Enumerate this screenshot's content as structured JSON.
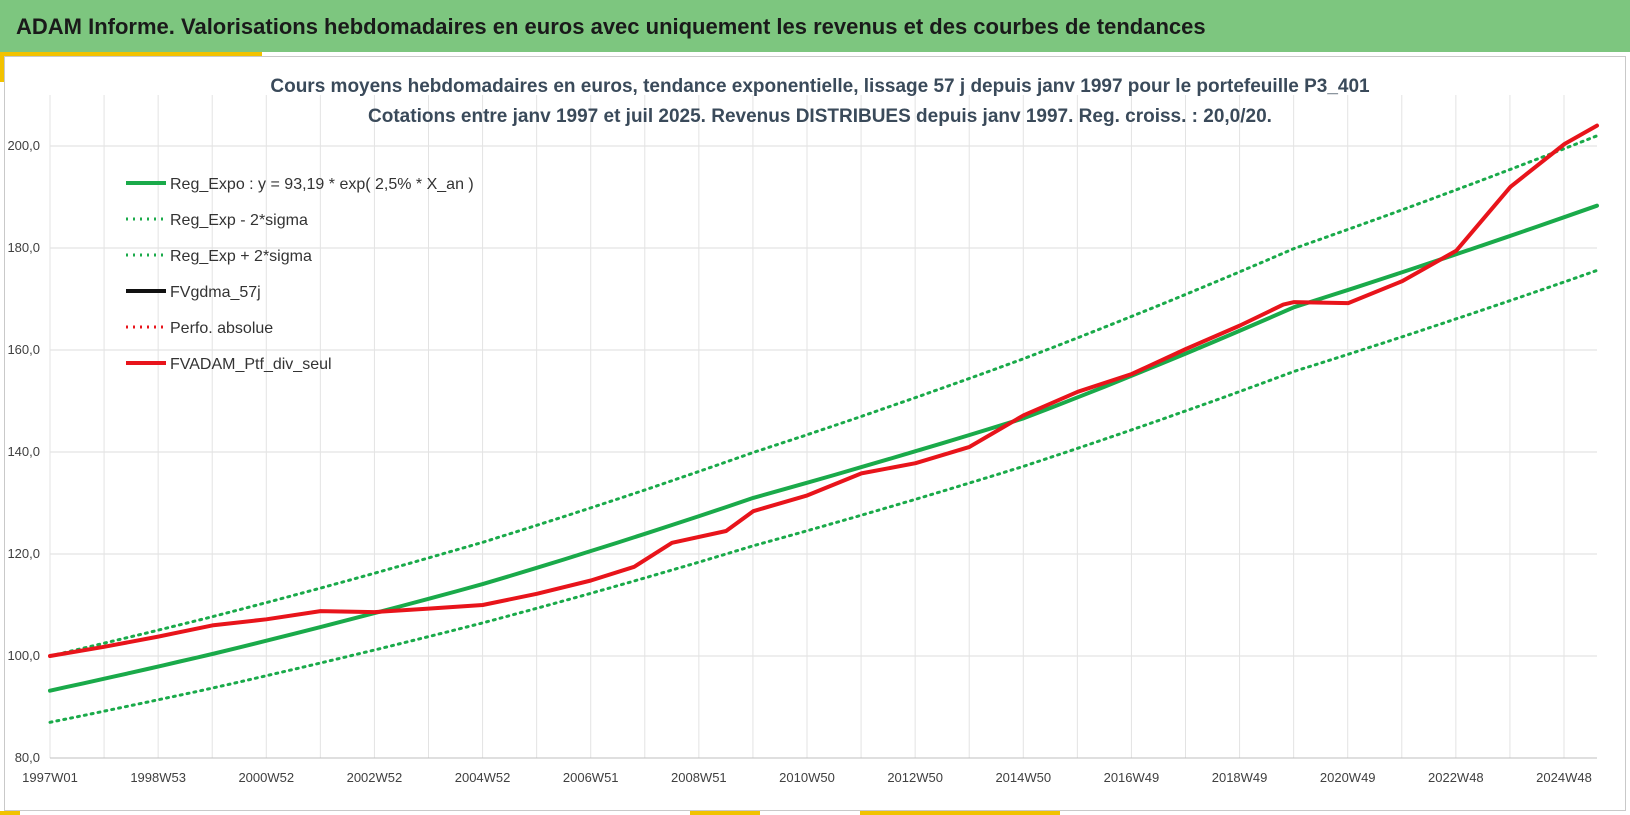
{
  "header": {
    "title": "ADAM Informe. Valorisations hebdomadaires en euros avec uniquement les revenus et des courbes de tendances"
  },
  "colors": {
    "banner": "#7dc67f",
    "accent": "#f2c200",
    "green": "#1aaa4a",
    "red": "#e8141b",
    "black": "#111111"
  },
  "chart_data": {
    "type": "line",
    "title_lines": [
      "Cours moyens hebdomadaires  en euros, tendance exponentielle, lissage 57 j depuis janv 1997 pour le portefeuille P3_401",
      "Cotations entre janv 1997 et juil 2025. Revenus DISTRIBUES depuis janv 1997. Reg. croiss. : 20,0/20."
    ],
    "ylim": [
      80,
      210
    ],
    "yticks": [
      "80,0",
      "100,0",
      "120,0",
      "140,0",
      "160,0",
      "180,0",
      "200,0"
    ],
    "xlim": [
      1997.0,
      2025.6
    ],
    "xticks": [
      "1997W01",
      "1998W53",
      "2000W52",
      "2002W52",
      "2004W52",
      "2006W51",
      "2008W51",
      "2010W50",
      "2012W50",
      "2014W50",
      "2016W49",
      "2018W49",
      "2020W49",
      "2022W48",
      "2024W48"
    ],
    "grid": true,
    "legend_position": "top-left",
    "series": [
      {
        "name": "Reg_Expo : y = 93,19 * exp( 2,5% *  X_an )",
        "color": "#1aaa4a",
        "style": "solid",
        "x": [
          1997.0,
          2000.0,
          2005.0,
          2010.0,
          2015.0,
          2020.0,
          2025.6
        ],
        "y": [
          93.2,
          100.4,
          114.1,
          131.0,
          146.6,
          168.4,
          188.3
        ]
      },
      {
        "name": "Reg_Exp - 2*sigma",
        "color": "#1aaa4a",
        "style": "dotted",
        "x": [
          1997.0,
          2000.0,
          2005.0,
          2010.0,
          2015.0,
          2020.0,
          2025.6
        ],
        "y": [
          87.0,
          93.7,
          106.5,
          121.6,
          137.2,
          155.8,
          175.6
        ]
      },
      {
        "name": "Reg_Exp + 2*sigma",
        "color": "#1aaa4a",
        "style": "dotted",
        "x": [
          1997.0,
          2000.0,
          2005.0,
          2010.0,
          2015.0,
          2020.0,
          2025.6
        ],
        "y": [
          100.0,
          107.7,
          122.3,
          139.9,
          158.3,
          179.9,
          202.0
        ]
      },
      {
        "name": "FVgdma_57j",
        "color": "#111111",
        "style": "solid",
        "x": [
          1997.0,
          1998.0,
          1999.0,
          2000.0,
          2001.0,
          2002.0,
          2003.0,
          2004.0,
          2005.0,
          2006.0,
          2007.0,
          2007.8,
          2008.5,
          2009.5,
          2010.0,
          2011.0,
          2012.0,
          2013.0,
          2014.0,
          2015.0,
          2016.0,
          2017.0,
          2018.0,
          2019.0,
          2019.8,
          2020.0,
          2021.0,
          2022.0,
          2023.0,
          2024.0,
          2025.0,
          2025.6
        ],
        "y": [
          100.0,
          101.8,
          103.8,
          106.0,
          107.2,
          108.8,
          108.6,
          109.3,
          110.0,
          112.2,
          114.8,
          117.5,
          122.2,
          124.5,
          128.4,
          131.5,
          135.8,
          137.8,
          141.0,
          147.2,
          151.8,
          155.3,
          160.2,
          164.8,
          168.9,
          169.4,
          169.2,
          173.5,
          179.5,
          192.0,
          200.4,
          204.0
        ]
      },
      {
        "name": "Perfo. absolue",
        "color": "#e8141b",
        "style": "dotted",
        "x": [
          1997.0,
          1998.0,
          1999.0,
          2000.0,
          2001.0,
          2002.0,
          2003.0,
          2004.0,
          2005.0,
          2006.0,
          2007.0,
          2007.8,
          2008.5,
          2009.5,
          2010.0,
          2011.0,
          2012.0,
          2013.0,
          2014.0,
          2015.0,
          2016.0,
          2017.0,
          2018.0,
          2019.0,
          2019.8,
          2020.0,
          2021.0,
          2022.0,
          2023.0,
          2024.0,
          2025.0,
          2025.6
        ],
        "y": [
          100.0,
          101.8,
          103.8,
          106.0,
          107.2,
          108.8,
          108.6,
          109.3,
          110.0,
          112.2,
          114.8,
          117.5,
          122.2,
          124.5,
          128.4,
          131.5,
          135.8,
          137.8,
          141.0,
          147.2,
          151.8,
          155.3,
          160.2,
          164.8,
          168.9,
          169.4,
          169.2,
          173.5,
          179.5,
          192.0,
          200.4,
          204.0
        ]
      },
      {
        "name": "FVADAM_Ptf_div_seul",
        "color": "#e8141b",
        "style": "thick",
        "x": [
          1997.0,
          1998.0,
          1999.0,
          2000.0,
          2001.0,
          2002.0,
          2003.0,
          2004.0,
          2005.0,
          2006.0,
          2007.0,
          2007.8,
          2008.5,
          2009.5,
          2010.0,
          2011.0,
          2012.0,
          2013.0,
          2014.0,
          2015.0,
          2016.0,
          2017.0,
          2018.0,
          2019.0,
          2019.8,
          2020.0,
          2021.0,
          2022.0,
          2023.0,
          2024.0,
          2025.0,
          2025.6
        ],
        "y": [
          100.0,
          101.8,
          103.8,
          106.0,
          107.2,
          108.8,
          108.6,
          109.3,
          110.0,
          112.2,
          114.8,
          117.5,
          122.2,
          124.5,
          128.4,
          131.5,
          135.8,
          137.8,
          141.0,
          147.2,
          151.8,
          155.3,
          160.2,
          164.8,
          168.9,
          169.4,
          169.2,
          173.5,
          179.5,
          192.0,
          200.4,
          204.0
        ]
      }
    ]
  }
}
